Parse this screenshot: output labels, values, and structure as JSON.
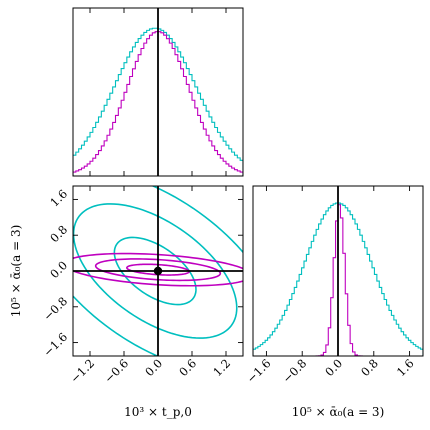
{
  "chart_data": {
    "type": "corner",
    "parameters": [
      {
        "key": "t",
        "label": "10³ × t_p,0",
        "range": [
          -1.5,
          1.5
        ]
      },
      {
        "key": "a",
        "label": "10⁵ × ᾱ₀(a = 3)",
        "range": [
          -1.9,
          1.9
        ]
      }
    ],
    "truth": {
      "t": 0.0,
      "a": 0.0
    },
    "ticks": {
      "t": [
        -1.2,
        -0.6,
        0.0,
        0.6,
        1.2
      ],
      "a": [
        -1.6,
        -0.8,
        0.0,
        0.8,
        1.6
      ]
    },
    "tick_labels": {
      "t": [
        "−1.2",
        "−0.6",
        "0.0",
        "0.6",
        "1.2"
      ],
      "a": [
        "−1.6",
        "−0.8",
        "0.0",
        "0.8",
        "1.6"
      ]
    },
    "series": [
      {
        "color": "#00bfbf",
        "sigma_t": 0.72,
        "sigma_a": 0.75,
        "rho": -0.55,
        "mean_t": -0.05,
        "mean_a": 0.0
      },
      {
        "color": "#bf00bf",
        "sigma_t": 0.55,
        "sigma_a": 0.12,
        "rho": -0.35,
        "mean_t": 0.0,
        "mean_a": 0.03
      }
    ],
    "contour_levels_sigma": [
      1,
      2,
      3
    ],
    "grid": false,
    "legend": "none"
  },
  "labels": {
    "x_bottom_left": "10³ × t_p,0",
    "x_bottom_right": "10⁵ × ᾱ₀(a = 3)",
    "y_left": "10⁵ × ᾱ₀(a = 3)"
  }
}
